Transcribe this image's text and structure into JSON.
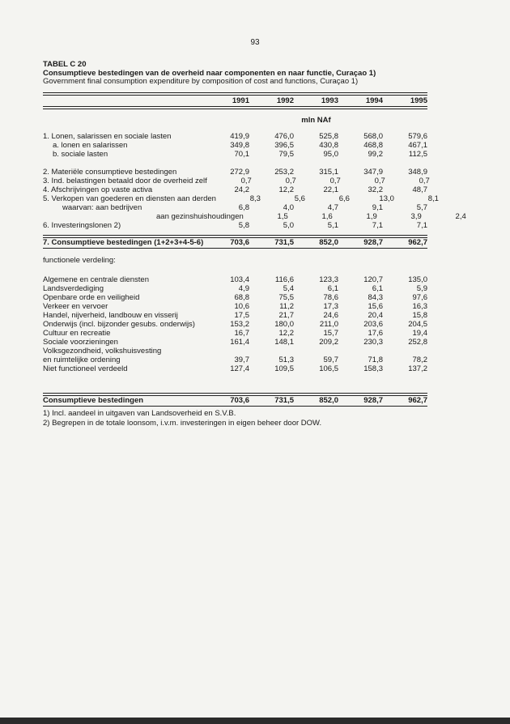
{
  "page_number": "93",
  "table_id": "TABEL C 20",
  "title_nl": "Consumptieve bestedingen van de overheid naar componenten en naar functie, Curaçao 1)",
  "title_en": "Government final consumption expenditure by composition of cost and functions, Curaçao 1)",
  "years": [
    "1991",
    "1992",
    "1993",
    "1994",
    "1995"
  ],
  "unit": "mln NAf",
  "components": [
    {
      "label": "1. Lonen, salarissen en sociale lasten",
      "indent": 0,
      "values": [
        "419,9",
        "476,0",
        "525,8",
        "568,0",
        "579,6"
      ]
    },
    {
      "label": "a. lonen en salarissen",
      "indent": 1,
      "values": [
        "349,8",
        "396,5",
        "430,8",
        "468,8",
        "467,1"
      ]
    },
    {
      "label": "b. sociale lasten",
      "indent": 1,
      "values": [
        "70,1",
        "79,5",
        "95,0",
        "99,2",
        "112,5"
      ]
    },
    {
      "label": "",
      "indent": 0,
      "values": []
    },
    {
      "label": "2. Materiële consumptieve bestedingen",
      "indent": 0,
      "values": [
        "272,9",
        "253,2",
        "315,1",
        "347,9",
        "348,9"
      ]
    },
    {
      "label": "3. Ind. belastingen betaald door de overheid zelf",
      "indent": 0,
      "values": [
        "0,7",
        "0,7",
        "0,7",
        "0,7",
        "0,7"
      ]
    },
    {
      "label": "4. Afschrijvingen op vaste activa",
      "indent": 0,
      "values": [
        "24,2",
        "12,2",
        "22,1",
        "32,2",
        "48,7"
      ]
    },
    {
      "label": "5. Verkopen van goederen en diensten aan derden",
      "indent": 0,
      "values": [
        "8,3",
        "5,6",
        "6,6",
        "13,0",
        "8,1"
      ]
    },
    {
      "label": "waarvan: aan bedrijven",
      "indent": 2,
      "values": [
        "6,8",
        "4,0",
        "4,7",
        "9,1",
        "5,7"
      ]
    },
    {
      "label": "aan gezinshuishoudingen",
      "indent": 3,
      "values": [
        "1,5",
        "1,6",
        "1,9",
        "3,9",
        "2,4"
      ]
    },
    {
      "label": "6. Investeringslonen 2)",
      "indent": 0,
      "values": [
        "5,8",
        "5,0",
        "5,1",
        "7,1",
        "7,1"
      ]
    }
  ],
  "components_total": {
    "label": "7. Consumptieve bestedingen (1+2+3+4-5-6)",
    "values": [
      "703,6",
      "731,5",
      "852,0",
      "928,7",
      "962,7"
    ]
  },
  "functional_heading": "functionele verdeling:",
  "functions": [
    {
      "label": "Algemene en centrale diensten",
      "values": [
        "103,4",
        "116,6",
        "123,3",
        "120,7",
        "135,0"
      ]
    },
    {
      "label": "Landsverdediging",
      "values": [
        "4,9",
        "5,4",
        "6,1",
        "6,1",
        "5,9"
      ]
    },
    {
      "label": "Openbare orde en veiligheid",
      "values": [
        "68,8",
        "75,5",
        "78,6",
        "84,3",
        "97,6"
      ]
    },
    {
      "label": "Verkeer en vervoer",
      "values": [
        "10,6",
        "11,2",
        "17,3",
        "15,6",
        "16,3"
      ]
    },
    {
      "label": "Handel, nijverheid, landbouw en visserij",
      "values": [
        "17,5",
        "21,7",
        "24,6",
        "20,4",
        "15,8"
      ]
    },
    {
      "label": "Onderwijs (incl. bijzonder gesubs. onderwijs)",
      "values": [
        "153,2",
        "180,0",
        "211,0",
        "203,6",
        "204,5"
      ]
    },
    {
      "label": "Cultuur en recreatie",
      "values": [
        "16,7",
        "12,2",
        "15,7",
        "17,6",
        "19,4"
      ]
    },
    {
      "label": "Sociale voorzieningen",
      "values": [
        "161,4",
        "148,1",
        "209,2",
        "230,3",
        "252,8"
      ]
    },
    {
      "label": "Volksgezondheid, volkshuisvesting",
      "values": []
    },
    {
      "label": " en ruimtelijke ordening",
      "values": [
        "39,7",
        "51,3",
        "59,7",
        "71,8",
        "78,2"
      ]
    },
    {
      "label": "Niet functioneel verdeeld",
      "values": [
        "127,4",
        "109,5",
        "106,5",
        "158,3",
        "137,2"
      ]
    }
  ],
  "functions_total": {
    "label": "Consumptieve bestedingen",
    "values": [
      "703,6",
      "731,5",
      "852,0",
      "928,7",
      "962,7"
    ]
  },
  "footnotes": [
    "1) Incl. aandeel in uitgaven van Landsoverheid en S.V.B.",
    "2) Begrepen in de totale loonsom, i.v.m. investeringen in eigen beheer door DOW."
  ]
}
